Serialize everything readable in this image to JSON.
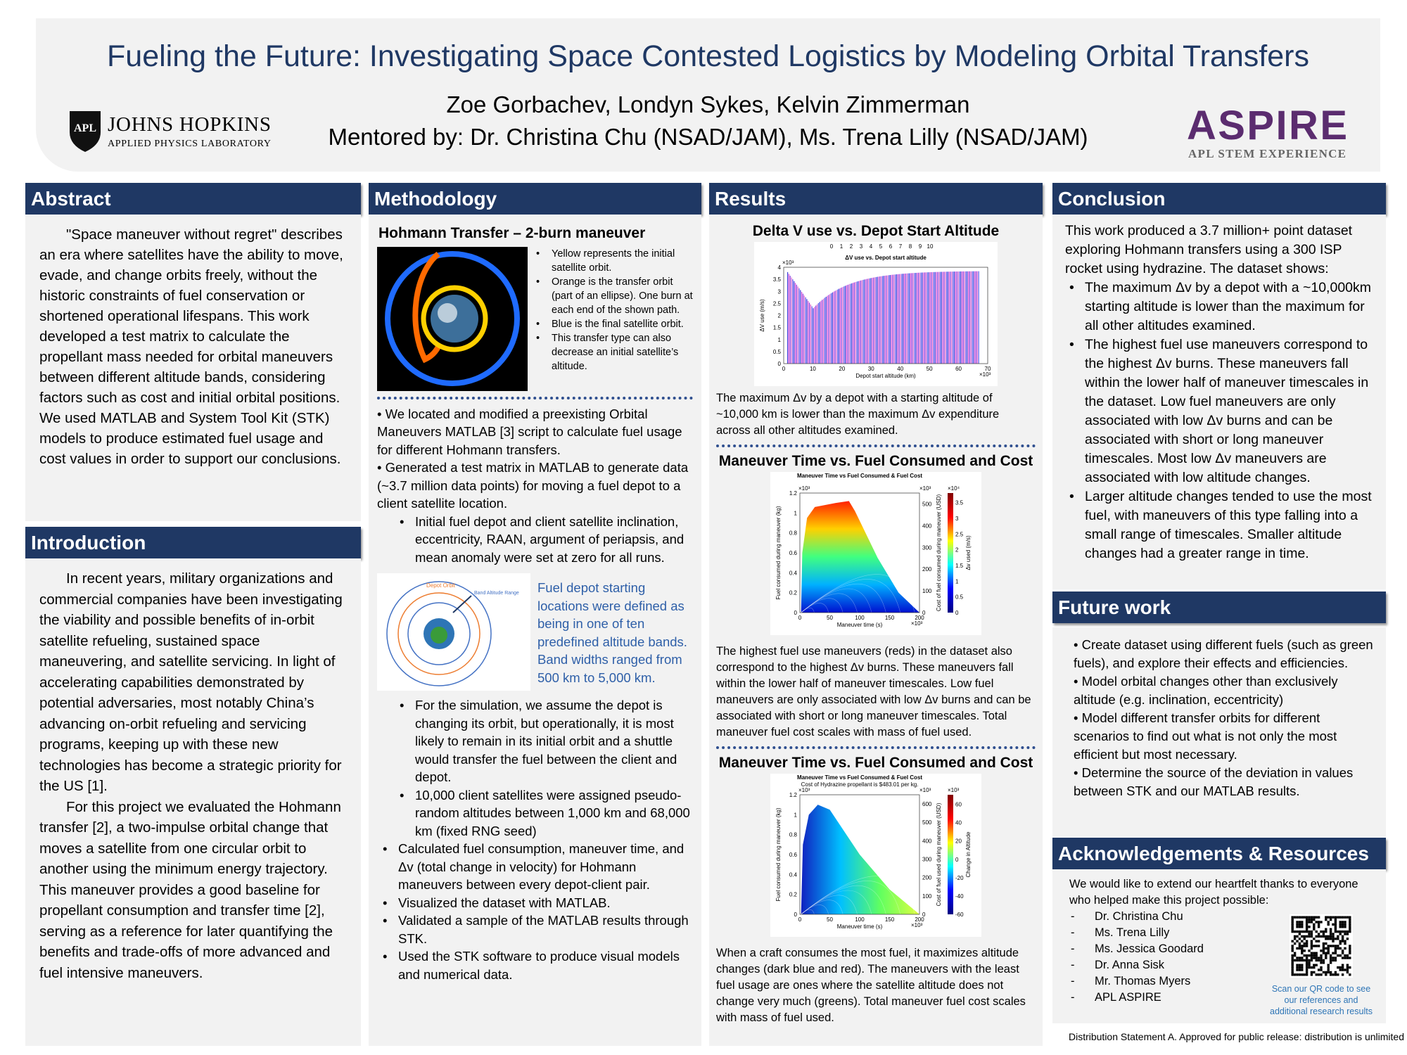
{
  "header": {
    "title": "Fueling the Future: Investigating Space Contested Logistics by Modeling Orbital Transfers",
    "authors": "Zoe Gorbachev, Londyn Sykes, Kelvin Zimmerman",
    "mentors": "Mentored by: Dr. Christina Chu (NSAD/JAM), Ms. Trena Lilly (NSAD/JAM)",
    "logo_left": {
      "shield": "APL",
      "name": "JOHNS HOPKINS",
      "sub": "APPLIED PHYSICS LABORATORY"
    },
    "logo_right": {
      "name": "ASPIRE",
      "sub": "APL STEM EXPERIENCE"
    }
  },
  "abstract": {
    "heading": "Abstract",
    "text": "\"Space maneuver without regret\" describes an era where satellites have the ability to move, evade, and change orbits freely, without the historic constraints of fuel conservation or shortened operational lifespans.  This work developed a test matrix to calculate the propellant mass needed for orbital maneuvers between different altitude bands, considering factors such as cost and initial orbital positions.  We used MATLAB and System Tool Kit (STK) models to produce estimated fuel usage and cost values in order to support our conclusions."
  },
  "introduction": {
    "heading": "Introduction",
    "paragraphs": [
      "In recent years, military organizations and commercial companies have been investigating the viability and possible benefits of in-orbit satellite refueling, sustained space maneuvering, and satellite servicing. In light of accelerating capabilities demonstrated by potential adversaries, most notably China’s advancing on-orbit refueling and servicing programs, keeping up with these new technologies has become a strategic priority for the US [1].",
      "For this project we evaluated the Hohmann transfer [2], a two-impulse orbital change that moves a satellite from one circular orbit to another using the minimum energy trajectory. This maneuver provides a good baseline for propellant consumption and transfer time [2], serving as a reference for later quantifying the benefits and trade-offs of more advanced and fuel intensive maneuvers."
    ]
  },
  "methodology": {
    "heading": "Methodology",
    "subtitle": "Hohmann Transfer – 2-burn maneuver",
    "figure_notes": [
      "Yellow represents the initial satellite orbit.",
      "Orange is the transfer orbit (part of an ellipse). One burn at each end of the shown path.",
      "Blue is the final satellite orbit.",
      "This transfer type can also decrease an initial satellite’s altitude."
    ],
    "list_1": [
      "We located and modified a preexisting Orbital Maneuvers MATLAB [3] script to calculate fuel usage for different Hohmann transfers.",
      "Generated a test matrix in MATLAB to generate data (~3.7 million data points) for moving a fuel depot to a client satellite location."
    ],
    "list_2": [
      "Initial fuel depot and client satellite inclination, eccentricity, RAAN, argument of periapsis, and mean anomaly were set at zero for all runs."
    ],
    "orbit_labels": {
      "depot": "Depot Orbit",
      "band": "Band Altitude Range"
    },
    "orbit_caption": "Fuel depot starting locations were defined as being in one of ten predefined altitude bands. Band widths ranged from 500 km to 5,000 km.",
    "list_3": [
      "For the simulation, we assume the depot is changing its orbit, but operationally, it is most likely to remain in its initial orbit and a shuttle would transfer the fuel between the client and depot.",
      "10,000 client satellites were assigned pseudo-random altitudes between 1,000 km and 68,000 km (fixed RNG seed)"
    ],
    "list_4": [
      "Calculated fuel consumption, maneuver time, and Δv (total change in velocity) for Hohmann maneuvers between every depot-client pair.",
      "Visualized the dataset with MATLAB.",
      "Validated a sample of the MATLAB results through STK.",
      "Used the STK software to produce visual models and numerical data."
    ]
  },
  "results": {
    "heading": "Results",
    "figures": [
      {
        "heading": "Delta V use vs. Depot Start Altitude",
        "chart": {
          "kind": "bar",
          "title": "ΔV use vs. Depot start altitude",
          "top_ticks": [
            "0",
            "1",
            "2",
            "3",
            "4",
            "5",
            "6",
            "7",
            "8",
            "9",
            "10"
          ],
          "ylabel": "ΔV use (m/s)",
          "xlabel": "Depot start altitude (km)",
          "yticks": [
            "0",
            "0.5",
            "1",
            "1.5",
            "2",
            "2.5",
            "3",
            "3.5",
            "4"
          ],
          "xticks": [
            "0",
            "10",
            "20",
            "30",
            "40",
            "50",
            "60",
            "70"
          ],
          "y_exp": "×10³",
          "x_exp": "×10³"
        },
        "caption": "The maximum Δv by a depot with a starting altitude of ~10,000 km is lower than the maximum Δv expenditure across all other altitudes examined."
      },
      {
        "heading": "Maneuver Time vs. Fuel Consumed and Cost",
        "chart": {
          "kind": "heat",
          "title": "Maneuver Time vs Fuel Consumed & Fuel Cost",
          "ylabel": "Fuel consumed during maneuver (kg)",
          "y2label": "Cost of fuel consumed during maneuver (USD)",
          "clabel": "Δv used (m/s)",
          "xlabel": "Maneuver time (s)",
          "yticks": [
            "0",
            "0.2",
            "0.4",
            "0.6",
            "0.8",
            "1",
            "1.2"
          ],
          "y2ticks": [
            "0",
            "100",
            "200",
            "300",
            "400",
            "500"
          ],
          "cticks": [
            "0",
            "0.5",
            "1",
            "1.5",
            "2",
            "2.5",
            "3",
            "3.5"
          ],
          "xticks": [
            "0",
            "50",
            "100",
            "150",
            "200"
          ],
          "y_exp": "×10³",
          "y2_exp": "×10³",
          "c_exp": "×10⁴",
          "x_exp": "×10³"
        },
        "caption": "The highest fuel use maneuvers (reds) in the dataset also correspond to the highest Δv burns. These maneuvers fall within the lower half of maneuver timescales. Low fuel maneuvers are only associated with low Δv burns and can be associated with short or long maneuver timescales. Total maneuver fuel cost scales with mass of fuel used."
      },
      {
        "heading": "Maneuver Time vs. Fuel Consumed and Cost",
        "chart": {
          "kind": "heat2",
          "title": "Maneuver Time vs Fuel Consumed & Fuel Cost",
          "subtitle": "Cost of Hydrazine propellant is $483.01 per kg.",
          "ylabel": "Fuel consumed during maneuver (kg)",
          "y2label": "Cost of fuel used during maneuver (USD)",
          "clabel": "Change in Altitude",
          "xlabel": "Maneuver time (s)",
          "yticks": [
            "0",
            "0.2",
            "0.4",
            "0.6",
            "0.8",
            "1",
            "1.2"
          ],
          "y2ticks": [
            "0",
            "100",
            "200",
            "300",
            "400",
            "500",
            "600"
          ],
          "cticks": [
            "-60",
            "-40",
            "-20",
            "0",
            "20",
            "40",
            "60"
          ],
          "xticks": [
            "0",
            "50",
            "100",
            "150",
            "200"
          ],
          "y_exp": "×10³",
          "y2_exp": "×10³",
          "c_exp": "×10³",
          "x_exp": "×10³"
        },
        "caption": "When a craft consumes the most fuel, it maximizes altitude changes (dark blue and red). The maneuvers with the least fuel usage are ones where the satellite altitude does not change very much (greens). Total maneuver fuel cost scales with mass of fuel used."
      }
    ]
  },
  "conclusion": {
    "heading": "Conclusion",
    "intro": "This work produced a 3.7 million+ point dataset exploring Hohmann transfers using a 300 ISP rocket using hydrazine. The dataset shows:",
    "bullets": [
      "The maximum Δv by a depot with a ~10,000km starting altitude is lower than the maximum for all other altitudes examined.",
      "The highest fuel use maneuvers correspond to the highest Δv burns. These maneuvers fall within the lower half of maneuver timescales in the dataset. Low fuel maneuvers are only associated with low Δv burns and can be associated with short or long maneuver timescales. Most low Δv maneuvers are associated with low altitude changes.",
      "Larger altitude changes tended to use the most fuel, with maneuvers of this type falling into a small range of timescales. Smaller altitude changes had a greater range in time."
    ]
  },
  "future_work": {
    "heading": "Future work",
    "bullets": [
      "Create dataset using different fuels (such as green fuels), and explore their effects and efficiencies.",
      "Model orbital changes other than exclusively altitude (e.g. inclination, eccentricity)",
      "Model different transfer orbits for different scenarios to find out what is not only the most efficient but most necessary.",
      "Determine the source of the deviation in values between STK and our MATLAB results."
    ]
  },
  "acknowledgements": {
    "heading": "Acknowledgements & Resources",
    "intro": "We would like to extend our heartfelt thanks to everyone who helped make this project possible:",
    "names": [
      "Dr. Christina Chu",
      "Ms. Trena Lilly",
      "Ms. Jessica Goodard",
      "Dr. Anna Sisk",
      "Mr. Thomas Myers",
      "APL ASPIRE"
    ],
    "qr_caption": "Scan our QR code to see our references and additional research results"
  },
  "footer": "Distribution Statement A. Approved for public release: distribution is unlimited"
}
